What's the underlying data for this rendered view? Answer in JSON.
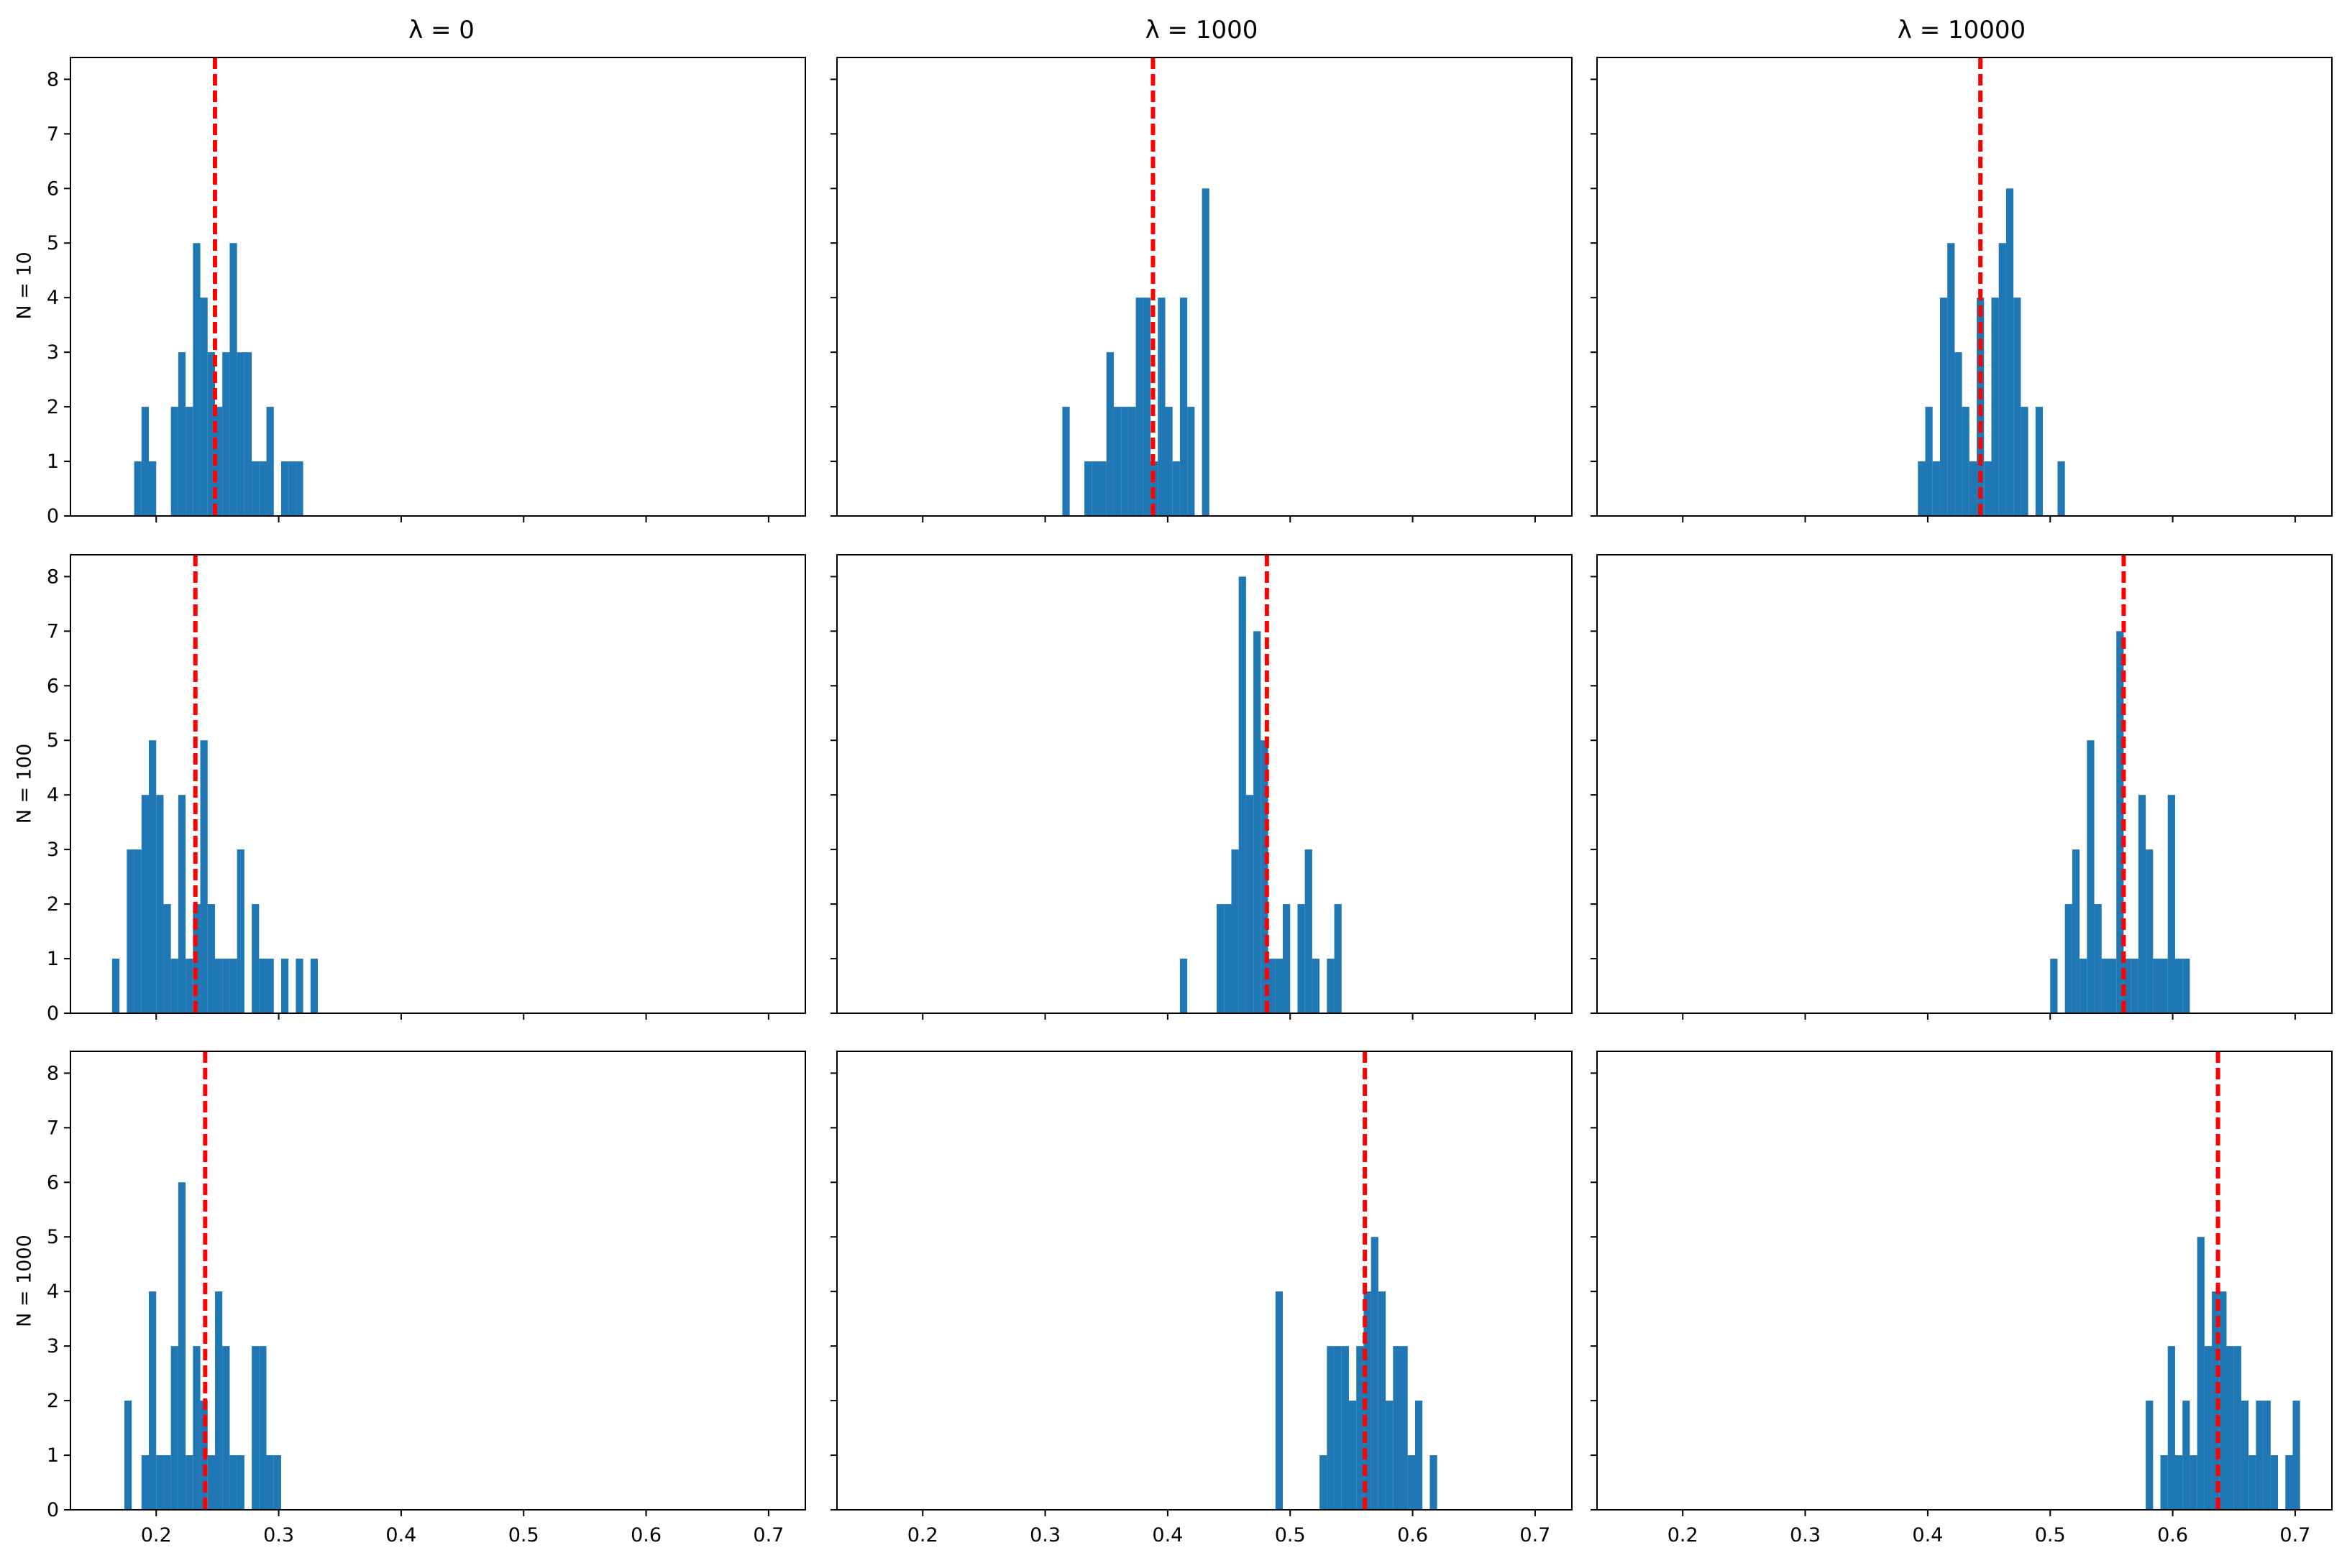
{
  "col_titles": [
    "λ = 0",
    "λ = 1000",
    "λ = 10000"
  ],
  "row_labels": [
    "N = 10",
    "N = 100",
    "N = 1000"
  ],
  "colors": {
    "bar": "#1f77b4",
    "reference_line": "#ff0000",
    "axes": "#000000"
  },
  "chart_data": {
    "type": "histogram-grid",
    "xlim": [
      0.13,
      0.73
    ],
    "ylim": [
      0,
      8.4
    ],
    "x_ticks": [
      0.2,
      0.3,
      0.4,
      0.5,
      0.6,
      0.7
    ],
    "x_tick_labels": [
      "0.2",
      "0.3",
      "0.4",
      "0.5",
      "0.6",
      "0.7"
    ],
    "y_ticks": [
      0,
      1,
      2,
      3,
      4,
      5,
      6,
      7,
      8
    ],
    "y_tick_labels": [
      "0",
      "1",
      "2",
      "3",
      "4",
      "5",
      "6",
      "7",
      "8"
    ],
    "bin_width": 0.006,
    "panels": [
      {
        "row": "N = 10",
        "col": "λ = 0",
        "mean_line": 0.248,
        "bins": [
          [
            0.182,
            1
          ],
          [
            0.188,
            2
          ],
          [
            0.194,
            1
          ],
          [
            0.212,
            2
          ],
          [
            0.218,
            3
          ],
          [
            0.224,
            2
          ],
          [
            0.23,
            5
          ],
          [
            0.236,
            4
          ],
          [
            0.242,
            3
          ],
          [
            0.248,
            2
          ],
          [
            0.254,
            3
          ],
          [
            0.26,
            5
          ],
          [
            0.266,
            3
          ],
          [
            0.272,
            3
          ],
          [
            0.278,
            1
          ],
          [
            0.284,
            1
          ],
          [
            0.29,
            2
          ],
          [
            0.302,
            1
          ],
          [
            0.308,
            1
          ],
          [
            0.314,
            1
          ]
        ]
      },
      {
        "row": "N = 10",
        "col": "λ = 1000",
        "mean_line": 0.388,
        "bins": [
          [
            0.314,
            2
          ],
          [
            0.332,
            1
          ],
          [
            0.338,
            1
          ],
          [
            0.344,
            1
          ],
          [
            0.35,
            3
          ],
          [
            0.356,
            2
          ],
          [
            0.362,
            2
          ],
          [
            0.368,
            2
          ],
          [
            0.374,
            4
          ],
          [
            0.38,
            4
          ],
          [
            0.386,
            1
          ],
          [
            0.392,
            4
          ],
          [
            0.398,
            2
          ],
          [
            0.404,
            1
          ],
          [
            0.41,
            4
          ],
          [
            0.416,
            2
          ],
          [
            0.428,
            6
          ]
        ]
      },
      {
        "row": "N = 10",
        "col": "λ = 10000",
        "mean_line": 0.443,
        "bins": [
          [
            0.392,
            1
          ],
          [
            0.398,
            2
          ],
          [
            0.404,
            1
          ],
          [
            0.41,
            4
          ],
          [
            0.416,
            5
          ],
          [
            0.422,
            3
          ],
          [
            0.428,
            2
          ],
          [
            0.434,
            1
          ],
          [
            0.44,
            4
          ],
          [
            0.446,
            1
          ],
          [
            0.452,
            4
          ],
          [
            0.458,
            5
          ],
          [
            0.464,
            6
          ],
          [
            0.47,
            4
          ],
          [
            0.476,
            2
          ],
          [
            0.488,
            2
          ],
          [
            0.506,
            1
          ]
        ]
      },
      {
        "row": "N = 100",
        "col": "λ = 0",
        "mean_line": 0.232,
        "bins": [
          [
            0.164,
            1
          ],
          [
            0.176,
            3
          ],
          [
            0.182,
            3
          ],
          [
            0.188,
            4
          ],
          [
            0.194,
            5
          ],
          [
            0.2,
            4
          ],
          [
            0.206,
            2
          ],
          [
            0.212,
            1
          ],
          [
            0.218,
            4
          ],
          [
            0.224,
            1
          ],
          [
            0.23,
            2
          ],
          [
            0.236,
            5
          ],
          [
            0.242,
            2
          ],
          [
            0.248,
            1
          ],
          [
            0.254,
            1
          ],
          [
            0.26,
            1
          ],
          [
            0.266,
            3
          ],
          [
            0.278,
            2
          ],
          [
            0.284,
            1
          ],
          [
            0.29,
            1
          ],
          [
            0.302,
            1
          ],
          [
            0.314,
            1
          ],
          [
            0.326,
            1
          ]
        ]
      },
      {
        "row": "N = 100",
        "col": "λ = 1000",
        "mean_line": 0.481,
        "bins": [
          [
            0.41,
            1
          ],
          [
            0.44,
            2
          ],
          [
            0.446,
            2
          ],
          [
            0.452,
            3
          ],
          [
            0.458,
            8
          ],
          [
            0.464,
            4
          ],
          [
            0.47,
            7
          ],
          [
            0.476,
            5
          ],
          [
            0.482,
            1
          ],
          [
            0.488,
            1
          ],
          [
            0.494,
            2
          ],
          [
            0.506,
            2
          ],
          [
            0.512,
            3
          ],
          [
            0.518,
            1
          ],
          [
            0.53,
            1
          ],
          [
            0.536,
            2
          ]
        ]
      },
      {
        "row": "N = 100",
        "col": "λ = 10000",
        "mean_line": 0.56,
        "bins": [
          [
            0.5,
            1
          ],
          [
            0.512,
            2
          ],
          [
            0.518,
            3
          ],
          [
            0.524,
            1
          ],
          [
            0.53,
            5
          ],
          [
            0.536,
            2
          ],
          [
            0.542,
            1
          ],
          [
            0.548,
            1
          ],
          [
            0.554,
            7
          ],
          [
            0.56,
            1
          ],
          [
            0.566,
            1
          ],
          [
            0.572,
            4
          ],
          [
            0.578,
            3
          ],
          [
            0.584,
            1
          ],
          [
            0.59,
            1
          ],
          [
            0.596,
            4
          ],
          [
            0.602,
            1
          ],
          [
            0.608,
            1
          ]
        ]
      },
      {
        "row": "N = 1000",
        "col": "λ = 0",
        "mean_line": 0.24,
        "bins": [
          [
            0.174,
            2
          ],
          [
            0.188,
            1
          ],
          [
            0.194,
            4
          ],
          [
            0.2,
            1
          ],
          [
            0.206,
            1
          ],
          [
            0.212,
            3
          ],
          [
            0.218,
            6
          ],
          [
            0.224,
            1
          ],
          [
            0.23,
            3
          ],
          [
            0.236,
            2
          ],
          [
            0.242,
            1
          ],
          [
            0.248,
            4
          ],
          [
            0.254,
            3
          ],
          [
            0.26,
            1
          ],
          [
            0.266,
            1
          ],
          [
            0.278,
            3
          ],
          [
            0.284,
            3
          ],
          [
            0.29,
            1
          ],
          [
            0.296,
            1
          ]
        ]
      },
      {
        "row": "N = 1000",
        "col": "λ = 1000",
        "mean_line": 0.561,
        "bins": [
          [
            0.488,
            4
          ],
          [
            0.524,
            1
          ],
          [
            0.53,
            3
          ],
          [
            0.536,
            3
          ],
          [
            0.542,
            3
          ],
          [
            0.548,
            2
          ],
          [
            0.554,
            3
          ],
          [
            0.56,
            4
          ],
          [
            0.566,
            5
          ],
          [
            0.572,
            4
          ],
          [
            0.578,
            2
          ],
          [
            0.584,
            3
          ],
          [
            0.59,
            3
          ],
          [
            0.596,
            1
          ],
          [
            0.602,
            2
          ],
          [
            0.614,
            1
          ]
        ]
      },
      {
        "row": "N = 1000",
        "col": "λ = 10000",
        "mean_line": 0.637,
        "bins": [
          [
            0.578,
            2
          ],
          [
            0.59,
            1
          ],
          [
            0.596,
            3
          ],
          [
            0.602,
            1
          ],
          [
            0.608,
            2
          ],
          [
            0.614,
            1
          ],
          [
            0.62,
            5
          ],
          [
            0.626,
            3
          ],
          [
            0.632,
            4
          ],
          [
            0.638,
            4
          ],
          [
            0.644,
            3
          ],
          [
            0.65,
            3
          ],
          [
            0.656,
            2
          ],
          [
            0.662,
            1
          ],
          [
            0.668,
            2
          ],
          [
            0.674,
            2
          ],
          [
            0.68,
            1
          ],
          [
            0.692,
            1
          ],
          [
            0.698,
            2
          ]
        ]
      }
    ]
  }
}
